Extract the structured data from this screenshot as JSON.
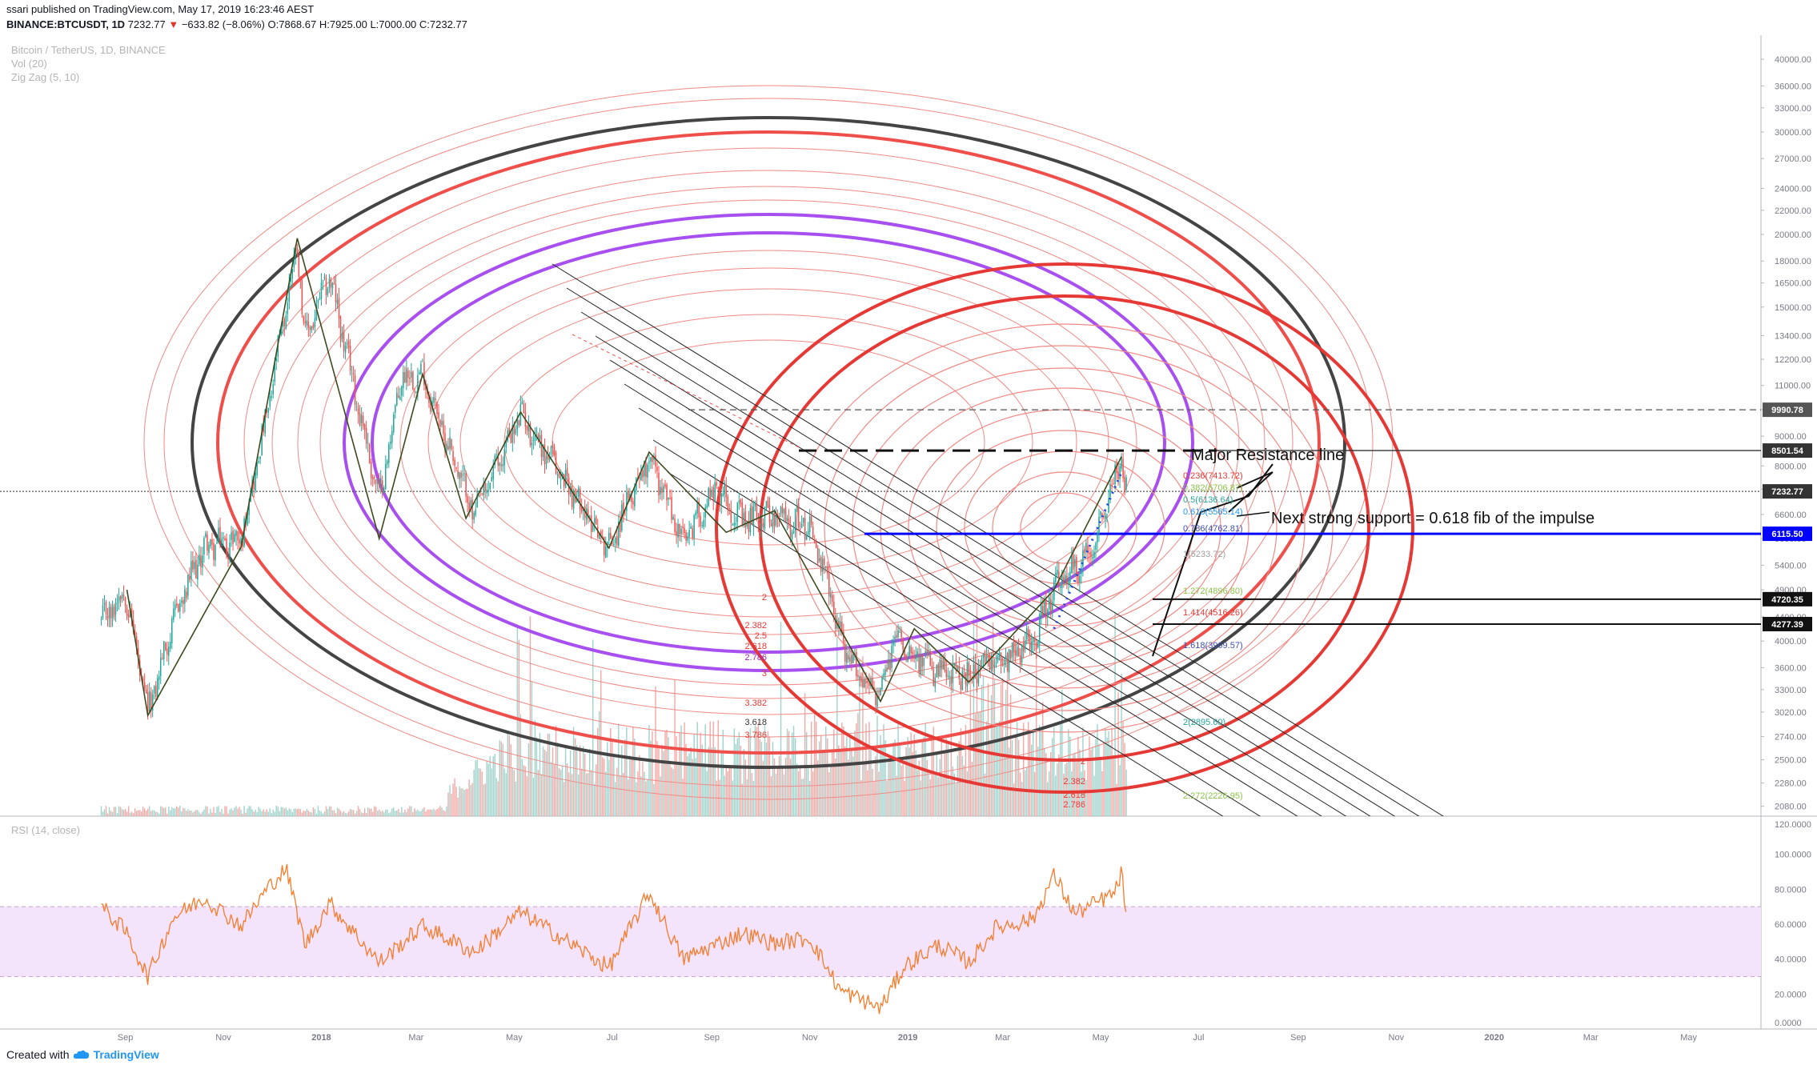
{
  "header": {
    "publisher": "ssari published on TradingView.com, May 17, 2019 16:23:46 AEST",
    "symbol": "BINANCE:BTCUSDT, 1D",
    "last": "7232.77",
    "change": "−633.82 (−8.06%)",
    "ohlc": "O:7868.67 H:7925.00 L:7000.00 C:7232.77"
  },
  "legend": {
    "title": "Bitcoin / TetherUS, 1D, BINANCE",
    "vol": "Vol (20)",
    "zigzag": "Zig Zag (5, 10)"
  },
  "rsi_label": "RSI (14, close)",
  "footer": {
    "created_with": "Created with",
    "brand": "TradingView"
  },
  "annotations": {
    "resistance": "Major Resistance line",
    "support": "Next strong support = 0.618 fib of the impulse"
  },
  "colors": {
    "up": "#26a69a",
    "down": "#ef5350",
    "rsi": "#f57c2b",
    "rsi_band": "#9c27b0",
    "blue_line": "#0000ff",
    "purple": "#a84ff0",
    "dark": "#444444",
    "red": "#e53935"
  },
  "chart_data": [
    {
      "type": "candlestick",
      "symbol": "BINANCE:BTCUSDT",
      "timeframe": "1D",
      "scale": "log",
      "ylim": [
        2000,
        44000
      ],
      "y_ticks": [
        "40000.00",
        "36000.00",
        "33000.00",
        "30000.00",
        "27000.00",
        "24000.00",
        "22000.00",
        "20000.00",
        "18000.00",
        "16500.00",
        "15000.00",
        "13400.00",
        "12200.00",
        "11000.00",
        "10000.00",
        "9000.00",
        "8000.00",
        "7300.00",
        "6600.00",
        "6000.00",
        "5400.00",
        "4900.00",
        "4400.00",
        "4000.00",
        "3600.00",
        "3300.00",
        "3020.00",
        "2740.00",
        "2500.00",
        "2280.00",
        "2080.00"
      ],
      "x_ticks": [
        "Sep",
        "Nov",
        "2018",
        "Mar",
        "May",
        "Jul",
        "Sep",
        "Nov",
        "2019",
        "Mar",
        "May",
        "Jul",
        "Sep",
        "Nov",
        "2020",
        "Mar",
        "May"
      ],
      "price_tags": [
        {
          "label": "9990.78",
          "value": 9990.78,
          "color": "#555555"
        },
        {
          "label": "8501.54",
          "value": 8501.54,
          "color": "#333333"
        },
        {
          "label": "7232.77",
          "value": 7232.77,
          "color": "#333333"
        },
        {
          "label": "6115.50",
          "value": 6115.5,
          "color": "#0000ff"
        },
        {
          "label": "4720.35",
          "value": 4720.35,
          "color": "#111111"
        },
        {
          "label": "4277.39",
          "value": 4277.39,
          "color": "#111111"
        }
      ],
      "path_x": [
        "2017-08-17",
        "2017-09-01",
        "2017-09-15",
        "2017-10-01",
        "2017-10-20",
        "2017-11-12",
        "2017-11-28",
        "2017-12-17",
        "2017-12-22",
        "2018-01-06",
        "2018-02-06",
        "2018-02-20",
        "2018-03-05",
        "2018-04-06",
        "2018-05-05",
        "2018-06-29",
        "2018-07-24",
        "2018-08-14",
        "2018-09-04",
        "2018-09-20",
        "2018-10-01",
        "2018-11-01",
        "2018-11-25",
        "2018-12-15",
        "2018-12-24",
        "2019-01-20",
        "2019-02-08",
        "2019-03-20",
        "2019-04-02",
        "2019-04-23",
        "2019-05-14",
        "2019-05-17"
      ],
      "path_close": [
        4300,
        4900,
        3000,
        4350,
        5800,
        6000,
        9700,
        19400,
        13200,
        17000,
        7000,
        11400,
        11500,
        6600,
        9800,
        5800,
        8400,
        5900,
        7400,
        6400,
        6600,
        6350,
        3700,
        3200,
        4100,
        3500,
        3500,
        4000,
        4900,
        5600,
        8200,
        7232.77
      ],
      "zigzag_x": [
        "2017-09-02",
        "2017-09-15",
        "2017-11-12",
        "2017-12-17",
        "2018-02-06",
        "2018-03-05",
        "2018-04-01",
        "2018-05-05",
        "2018-06-29",
        "2018-07-24",
        "2018-09-10",
        "2018-10-10",
        "2018-12-15",
        "2019-01-05",
        "2019-02-08",
        "2019-04-02",
        "2019-05-14"
      ],
      "zigzag_y": [
        4900,
        2980,
        5800,
        19700,
        6000,
        11500,
        6500,
        9900,
        5780,
        8450,
        6150,
        6700,
        3150,
        4200,
        3400,
        4900,
        8300
      ],
      "resistance_dashed": 8501.54,
      "resistance_dotted": 9990.78,
      "support_blue": 6115.5,
      "hlines": [
        4720.35,
        4277.39
      ],
      "last_price": 7232.77,
      "fib_labels_upper": [
        {
          "text": "0.236(7413.72)",
          "color": "#e53935"
        },
        {
          "text": "0.382(6706.87)",
          "color": "#8bc34a"
        },
        {
          "text": "0.5(6136.64)",
          "color": "#26a69a"
        },
        {
          "text": "0.618(5565.14)",
          "color": "#2196f3"
        },
        {
          "text": "0.786(4762.81)",
          "color": "#3f51b5"
        },
        {
          "text": "1(5233.72)",
          "color": "#9e9e9e"
        },
        {
          "text": "1.272(4896.80)",
          "color": "#8bc34a"
        },
        {
          "text": "1.414(4516.26)",
          "color": "#e53935"
        },
        {
          "text": "1.618(3969.57)",
          "color": "#3f51b5"
        },
        {
          "text": "2(2895.60)",
          "color": "#26a69a"
        },
        {
          "text": "2.272(2226.95)",
          "color": "#8bc34a"
        }
      ],
      "fib_labels_left": [
        {
          "text": "2",
          "color": "#e53935"
        },
        {
          "text": "2.382",
          "color": "#e53935"
        },
        {
          "text": "2.5",
          "color": "#e53935"
        },
        {
          "text": "2.618",
          "color": "#e53935"
        },
        {
          "text": "2.786",
          "color": "#9c27b0"
        },
        {
          "text": "3",
          "color": "#e53935"
        },
        {
          "text": "3.382",
          "color": "#e53935"
        },
        {
          "text": "3.618",
          "color": "#333333"
        },
        {
          "text": "3.786",
          "color": "#e53935"
        }
      ],
      "fib_labels_lower": [
        {
          "text": "2",
          "color": "#e53935"
        },
        {
          "text": "2.382",
          "color": "#e53935"
        },
        {
          "text": "2.618",
          "color": "#e53935"
        },
        {
          "text": "2.786",
          "color": "#e53935"
        }
      ]
    },
    {
      "type": "line",
      "name": "RSI (14, close)",
      "ylim": [
        0,
        120
      ],
      "y_ticks": [
        "120.0000",
        "100.0000",
        "80.0000",
        "60.0000",
        "40.0000",
        "20.0000",
        "0.0000"
      ],
      "band": [
        30,
        70
      ],
      "x": [
        "2017-08-17",
        "2017-09-01",
        "2017-09-15",
        "2017-10-01",
        "2017-10-20",
        "2017-11-12",
        "2017-11-28",
        "2017-12-10",
        "2017-12-22",
        "2018-01-06",
        "2018-02-06",
        "2018-03-05",
        "2018-04-06",
        "2018-05-05",
        "2018-06-29",
        "2018-07-24",
        "2018-08-14",
        "2018-09-20",
        "2018-10-10",
        "2018-11-01",
        "2018-11-20",
        "2018-12-15",
        "2018-12-30",
        "2019-01-20",
        "2019-02-08",
        "2019-02-25",
        "2019-03-20",
        "2019-04-02",
        "2019-04-15",
        "2019-04-30",
        "2019-05-10",
        "2019-05-14",
        "2019-05-17"
      ],
      "values": [
        70,
        56,
        30,
        64,
        75,
        59,
        80,
        92,
        48,
        72,
        38,
        59,
        44,
        67,
        35,
        78,
        40,
        55,
        49,
        52,
        22,
        12,
        36,
        48,
        38,
        58,
        63,
        88,
        66,
        73,
        78,
        90,
        64
      ]
    }
  ]
}
